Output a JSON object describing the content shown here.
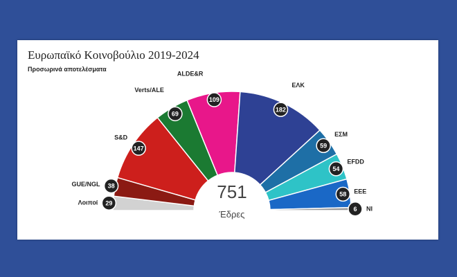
{
  "header": {
    "title": "Ευρωπαϊκό Κοινοβούλιο 2019-2024",
    "subtitle": "Προσωρινά αποτελέσματα"
  },
  "colors": {
    "background": "#2f4f98",
    "card": "#ffffff"
  },
  "chart_data": {
    "type": "pie",
    "subtype": "parliament-semicircle",
    "total": {
      "value": "751",
      "label": "Έδρες"
    },
    "series": [
      {
        "name": "Λοιποί",
        "value": 29,
        "color": "#d2d2d2"
      },
      {
        "name": "GUE/NGL",
        "value": 38,
        "color": "#8b1a13"
      },
      {
        "name": "S&D",
        "value": 147,
        "color": "#cd1f1c"
      },
      {
        "name": "Verts/ALE",
        "value": 69,
        "color": "#1b7a32"
      },
      {
        "name": "ALDE&R",
        "value": 109,
        "color": "#e8178a"
      },
      {
        "name": "ΕΛΚ",
        "value": 182,
        "color": "#2e4194"
      },
      {
        "name": "ΕΣΜ",
        "value": 59,
        "color": "#1e6fa6"
      },
      {
        "name": "EFDD",
        "value": 54,
        "color": "#2ec3c7"
      },
      {
        "name": "ΕΕΕ",
        "value": 58,
        "color": "#1a68c6"
      },
      {
        "name": "NI",
        "value": 6,
        "color": "#999999"
      }
    ]
  }
}
